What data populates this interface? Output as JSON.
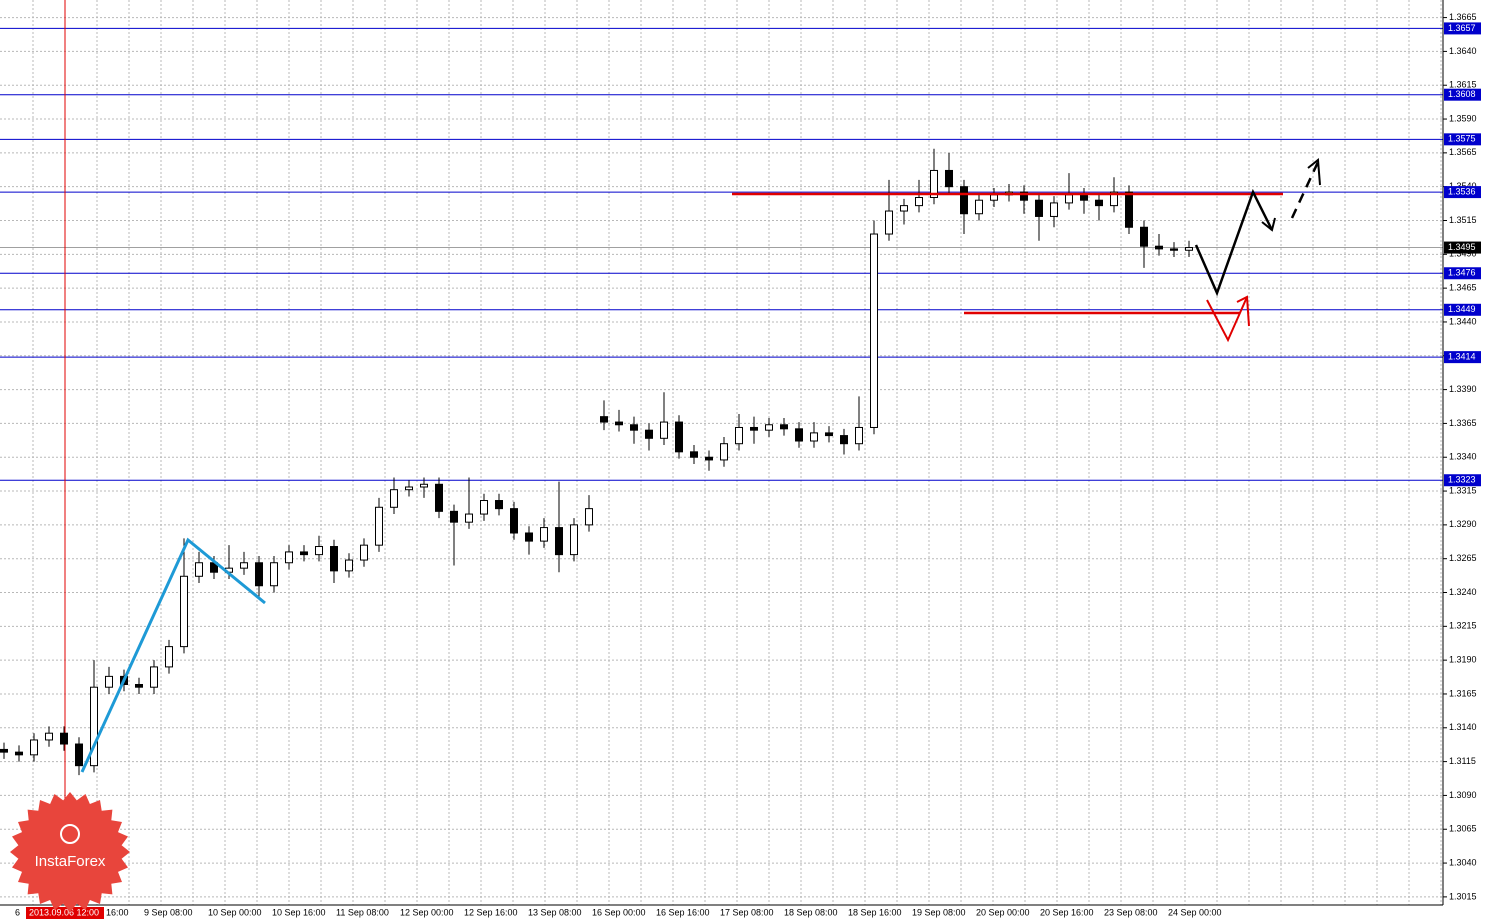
{
  "chart_data": {
    "type": "candlestick",
    "ohlc": [
      [
        1.3124,
        1.3129,
        1.3117,
        1.3122
      ],
      [
        1.3122,
        1.3127,
        1.3115,
        1.312
      ],
      [
        1.312,
        1.3136,
        1.3115,
        1.3131
      ],
      [
        1.3131,
        1.3141,
        1.3126,
        1.3136
      ],
      [
        1.3136,
        1.3141,
        1.3123,
        1.3128
      ],
      [
        1.3128,
        1.3133,
        1.3105,
        1.3112
      ],
      [
        1.3112,
        1.319,
        1.3107,
        1.317
      ],
      [
        1.317,
        1.3185,
        1.3165,
        1.3178
      ],
      [
        1.3178,
        1.3183,
        1.3167,
        1.3172
      ],
      [
        1.3172,
        1.3177,
        1.3165,
        1.317
      ],
      [
        1.317,
        1.319,
        1.3165,
        1.3185
      ],
      [
        1.3185,
        1.3205,
        1.318,
        1.32
      ],
      [
        1.32,
        1.328,
        1.3195,
        1.3252
      ],
      [
        1.3252,
        1.327,
        1.3247,
        1.3262
      ],
      [
        1.3262,
        1.3267,
        1.325,
        1.3255
      ],
      [
        1.3255,
        1.3275,
        1.325,
        1.3258
      ],
      [
        1.3258,
        1.327,
        1.3253,
        1.3262
      ],
      [
        1.3262,
        1.3267,
        1.3235,
        1.3245
      ],
      [
        1.3245,
        1.3267,
        1.324,
        1.3262
      ],
      [
        1.3262,
        1.3275,
        1.3257,
        1.327
      ],
      [
        1.327,
        1.3275,
        1.3263,
        1.3268
      ],
      [
        1.3268,
        1.3282,
        1.3263,
        1.3274
      ],
      [
        1.3274,
        1.3279,
        1.3247,
        1.3256
      ],
      [
        1.3256,
        1.3269,
        1.3251,
        1.3264
      ],
      [
        1.3264,
        1.328,
        1.3259,
        1.3275
      ],
      [
        1.3275,
        1.331,
        1.327,
        1.3303
      ],
      [
        1.3303,
        1.3325,
        1.3298,
        1.3316
      ],
      [
        1.3316,
        1.3323,
        1.3311,
        1.3318
      ],
      [
        1.3318,
        1.3325,
        1.331,
        1.332
      ],
      [
        1.332,
        1.3325,
        1.3295,
        1.33
      ],
      [
        1.33,
        1.3305,
        1.326,
        1.3292
      ],
      [
        1.3292,
        1.3325,
        1.3287,
        1.3298
      ],
      [
        1.3298,
        1.3313,
        1.3293,
        1.3308
      ],
      [
        1.3308,
        1.3313,
        1.3297,
        1.3302
      ],
      [
        1.3302,
        1.3307,
        1.3279,
        1.3284
      ],
      [
        1.3284,
        1.3289,
        1.3268,
        1.3278
      ],
      [
        1.3278,
        1.3295,
        1.3273,
        1.3288
      ],
      [
        1.3288,
        1.3322,
        1.3255,
        1.3268
      ],
      [
        1.3268,
        1.3295,
        1.3263,
        1.329
      ],
      [
        1.329,
        1.3312,
        1.3285,
        1.3302
      ],
      [
        1.337,
        1.3382,
        1.336,
        1.3366
      ],
      [
        1.3366,
        1.3375,
        1.3359,
        1.3364
      ],
      [
        1.3364,
        1.337,
        1.335,
        1.336
      ],
      [
        1.336,
        1.3365,
        1.3345,
        1.3354
      ],
      [
        1.3354,
        1.3388,
        1.3349,
        1.3366
      ],
      [
        1.3366,
        1.3371,
        1.3339,
        1.3344
      ],
      [
        1.3344,
        1.3349,
        1.3335,
        1.334
      ],
      [
        1.334,
        1.3345,
        1.333,
        1.3338
      ],
      [
        1.3338,
        1.3355,
        1.3333,
        1.335
      ],
      [
        1.335,
        1.3372,
        1.3345,
        1.3362
      ],
      [
        1.3362,
        1.337,
        1.335,
        1.336
      ],
      [
        1.336,
        1.3369,
        1.3355,
        1.3364
      ],
      [
        1.3364,
        1.3369,
        1.3356,
        1.3361
      ],
      [
        1.3361,
        1.3366,
        1.3347,
        1.3352
      ],
      [
        1.3352,
        1.3366,
        1.3347,
        1.3358
      ],
      [
        1.3358,
        1.3363,
        1.3351,
        1.3356
      ],
      [
        1.3356,
        1.3361,
        1.3342,
        1.335
      ],
      [
        1.335,
        1.3385,
        1.3345,
        1.3362
      ],
      [
        1.3362,
        1.3515,
        1.3357,
        1.3505
      ],
      [
        1.3505,
        1.3545,
        1.35,
        1.3522
      ],
      [
        1.3522,
        1.3531,
        1.3512,
        1.3526
      ],
      [
        1.3526,
        1.3545,
        1.3521,
        1.3532
      ],
      [
        1.3532,
        1.3568,
        1.3527,
        1.3552
      ],
      [
        1.3552,
        1.3565,
        1.3535,
        1.354
      ],
      [
        1.354,
        1.3545,
        1.3505,
        1.352
      ],
      [
        1.352,
        1.3535,
        1.3515,
        1.353
      ],
      [
        1.353,
        1.3539,
        1.3525,
        1.3534
      ],
      [
        1.3534,
        1.3542,
        1.3529,
        1.3536
      ],
      [
        1.3536,
        1.3541,
        1.352,
        1.353
      ],
      [
        1.353,
        1.3535,
        1.35,
        1.3518
      ],
      [
        1.3518,
        1.3533,
        1.351,
        1.3528
      ],
      [
        1.3528,
        1.355,
        1.3523,
        1.3534
      ],
      [
        1.3534,
        1.3539,
        1.352,
        1.353
      ],
      [
        1.353,
        1.3535,
        1.3515,
        1.3526
      ],
      [
        1.3526,
        1.3547,
        1.3521,
        1.3536
      ],
      [
        1.3536,
        1.3541,
        1.3505,
        1.351
      ],
      [
        1.351,
        1.3515,
        1.348,
        1.3496
      ],
      [
        1.3496,
        1.3505,
        1.3489,
        1.3494
      ],
      [
        1.3494,
        1.3499,
        1.3488,
        1.3493
      ],
      [
        1.3493,
        1.35,
        1.3488,
        1.3495
      ]
    ],
    "up_color": "#ffffff",
    "down_color": "#000000",
    "ylim": [
      1.3009,
      1.3678
    ],
    "yticks": [
      1.3015,
      {
        "value": 1.304,
        "label": "1.3040"
      },
      1.3065,
      {
        "value": 1.309,
        "label": "1.3090"
      },
      1.3115,
      {
        "value": 1.314,
        "label": "1.3140"
      },
      1.3165,
      {
        "value": 1.319,
        "label": "1.3190"
      },
      1.3215,
      {
        "value": 1.324,
        "label": "1.3240"
      },
      1.3265,
      {
        "value": 1.329,
        "label": "1.3290"
      },
      1.3315,
      {
        "value": 1.334,
        "label": "1.3340"
      },
      1.3365,
      {
        "value": 1.339,
        "label": "1.3390"
      },
      1.3415,
      {
        "value": 1.344,
        "label": "1.3440"
      },
      1.3465,
      {
        "value": 1.349,
        "label": "1.3490"
      },
      1.3515,
      {
        "value": 1.354,
        "label": "1.3540"
      },
      1.3565,
      {
        "value": 1.359,
        "label": "1.3590"
      },
      1.3615,
      {
        "value": 1.364,
        "label": "1.3640"
      },
      1.3665
    ],
    "levels": [
      1.3657,
      1.3608,
      1.3575,
      1.3536,
      1.3476,
      1.3449,
      1.3414,
      1.3323
    ],
    "level_color": "#0000cc",
    "current_price": 1.3495,
    "x_labels": [
      "6",
      "16:00",
      "9 Sep 08:00",
      "10 Sep 00:00",
      "10 Sep 16:00",
      "11 Sep 08:00",
      "12 Sep 00:00",
      "12 Sep 16:00",
      "13 Sep 08:00",
      "16 Sep 00:00",
      "16 Sep 16:00",
      "17 Sep 08:00",
      "18 Sep 08:00",
      "18 Sep 16:00",
      "19 Sep 08:00",
      "20 Sep 00:00",
      "20 Sep 16:00",
      "23 Sep 08:00",
      "24 Sep 00:00"
    ],
    "cursor_time": "2013.09.06 12:00",
    "grid": true,
    "logo": "InstaForex"
  }
}
